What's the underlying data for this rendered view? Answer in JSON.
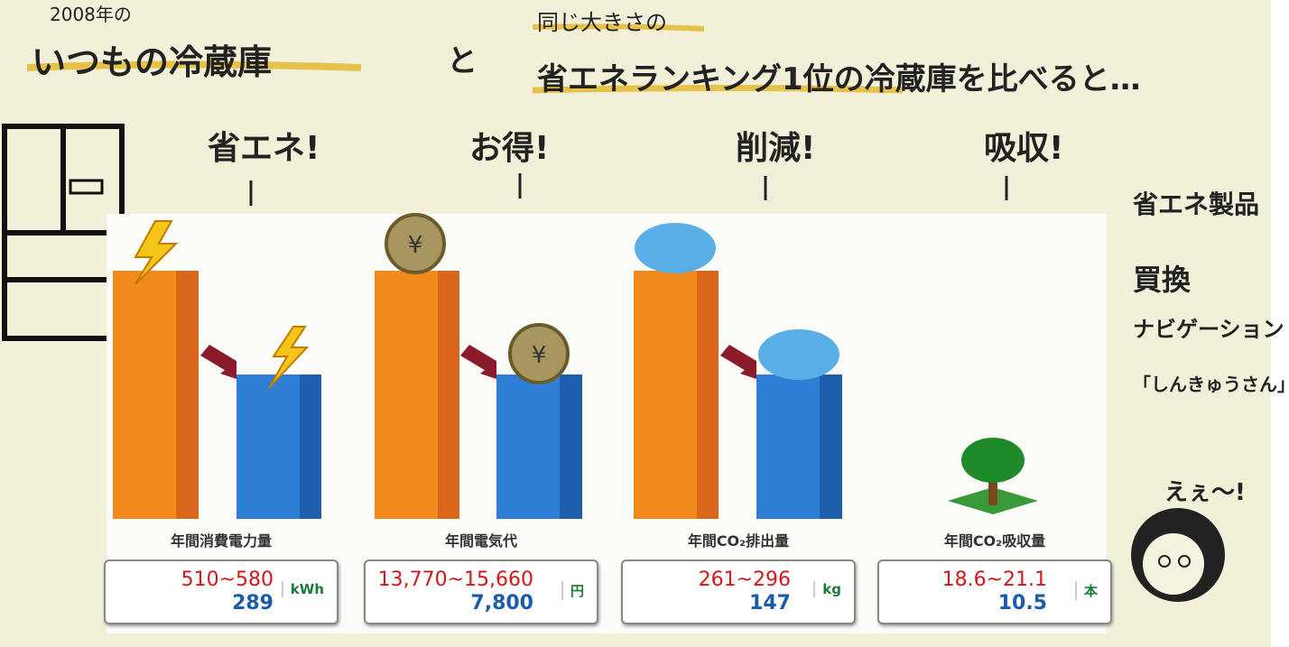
{
  "header": {
    "year": "2008年の",
    "left_title": "いつもの冷蔵庫",
    "connector": "と",
    "subtitle": "同じ大きさの",
    "right_title": "省エネランキング1位の冷蔵庫を比べると…"
  },
  "callouts": [
    "省エネ!",
    "お得!",
    "削減!",
    "吸収!"
  ],
  "panels": [
    {
      "label": "年間消費電力量",
      "range": "510~580",
      "value": "289",
      "unit": "kWh"
    },
    {
      "label": "年間電気代",
      "range": "13,770~15,660",
      "value": "7,800",
      "unit": "円"
    },
    {
      "label": "年間CO₂排出量",
      "range": "261~296",
      "value": "147",
      "unit": "kg"
    },
    {
      "label": "年間CO₂吸収量",
      "range": "18.6~21.1",
      "value": "10.5",
      "unit": "本"
    }
  ],
  "side_note": {
    "lines": [
      "省エネ製品",
      "買換",
      "ナビゲーション",
      "「しんきゅうさん」"
    ],
    "exclaim": "えぇ～!"
  }
}
